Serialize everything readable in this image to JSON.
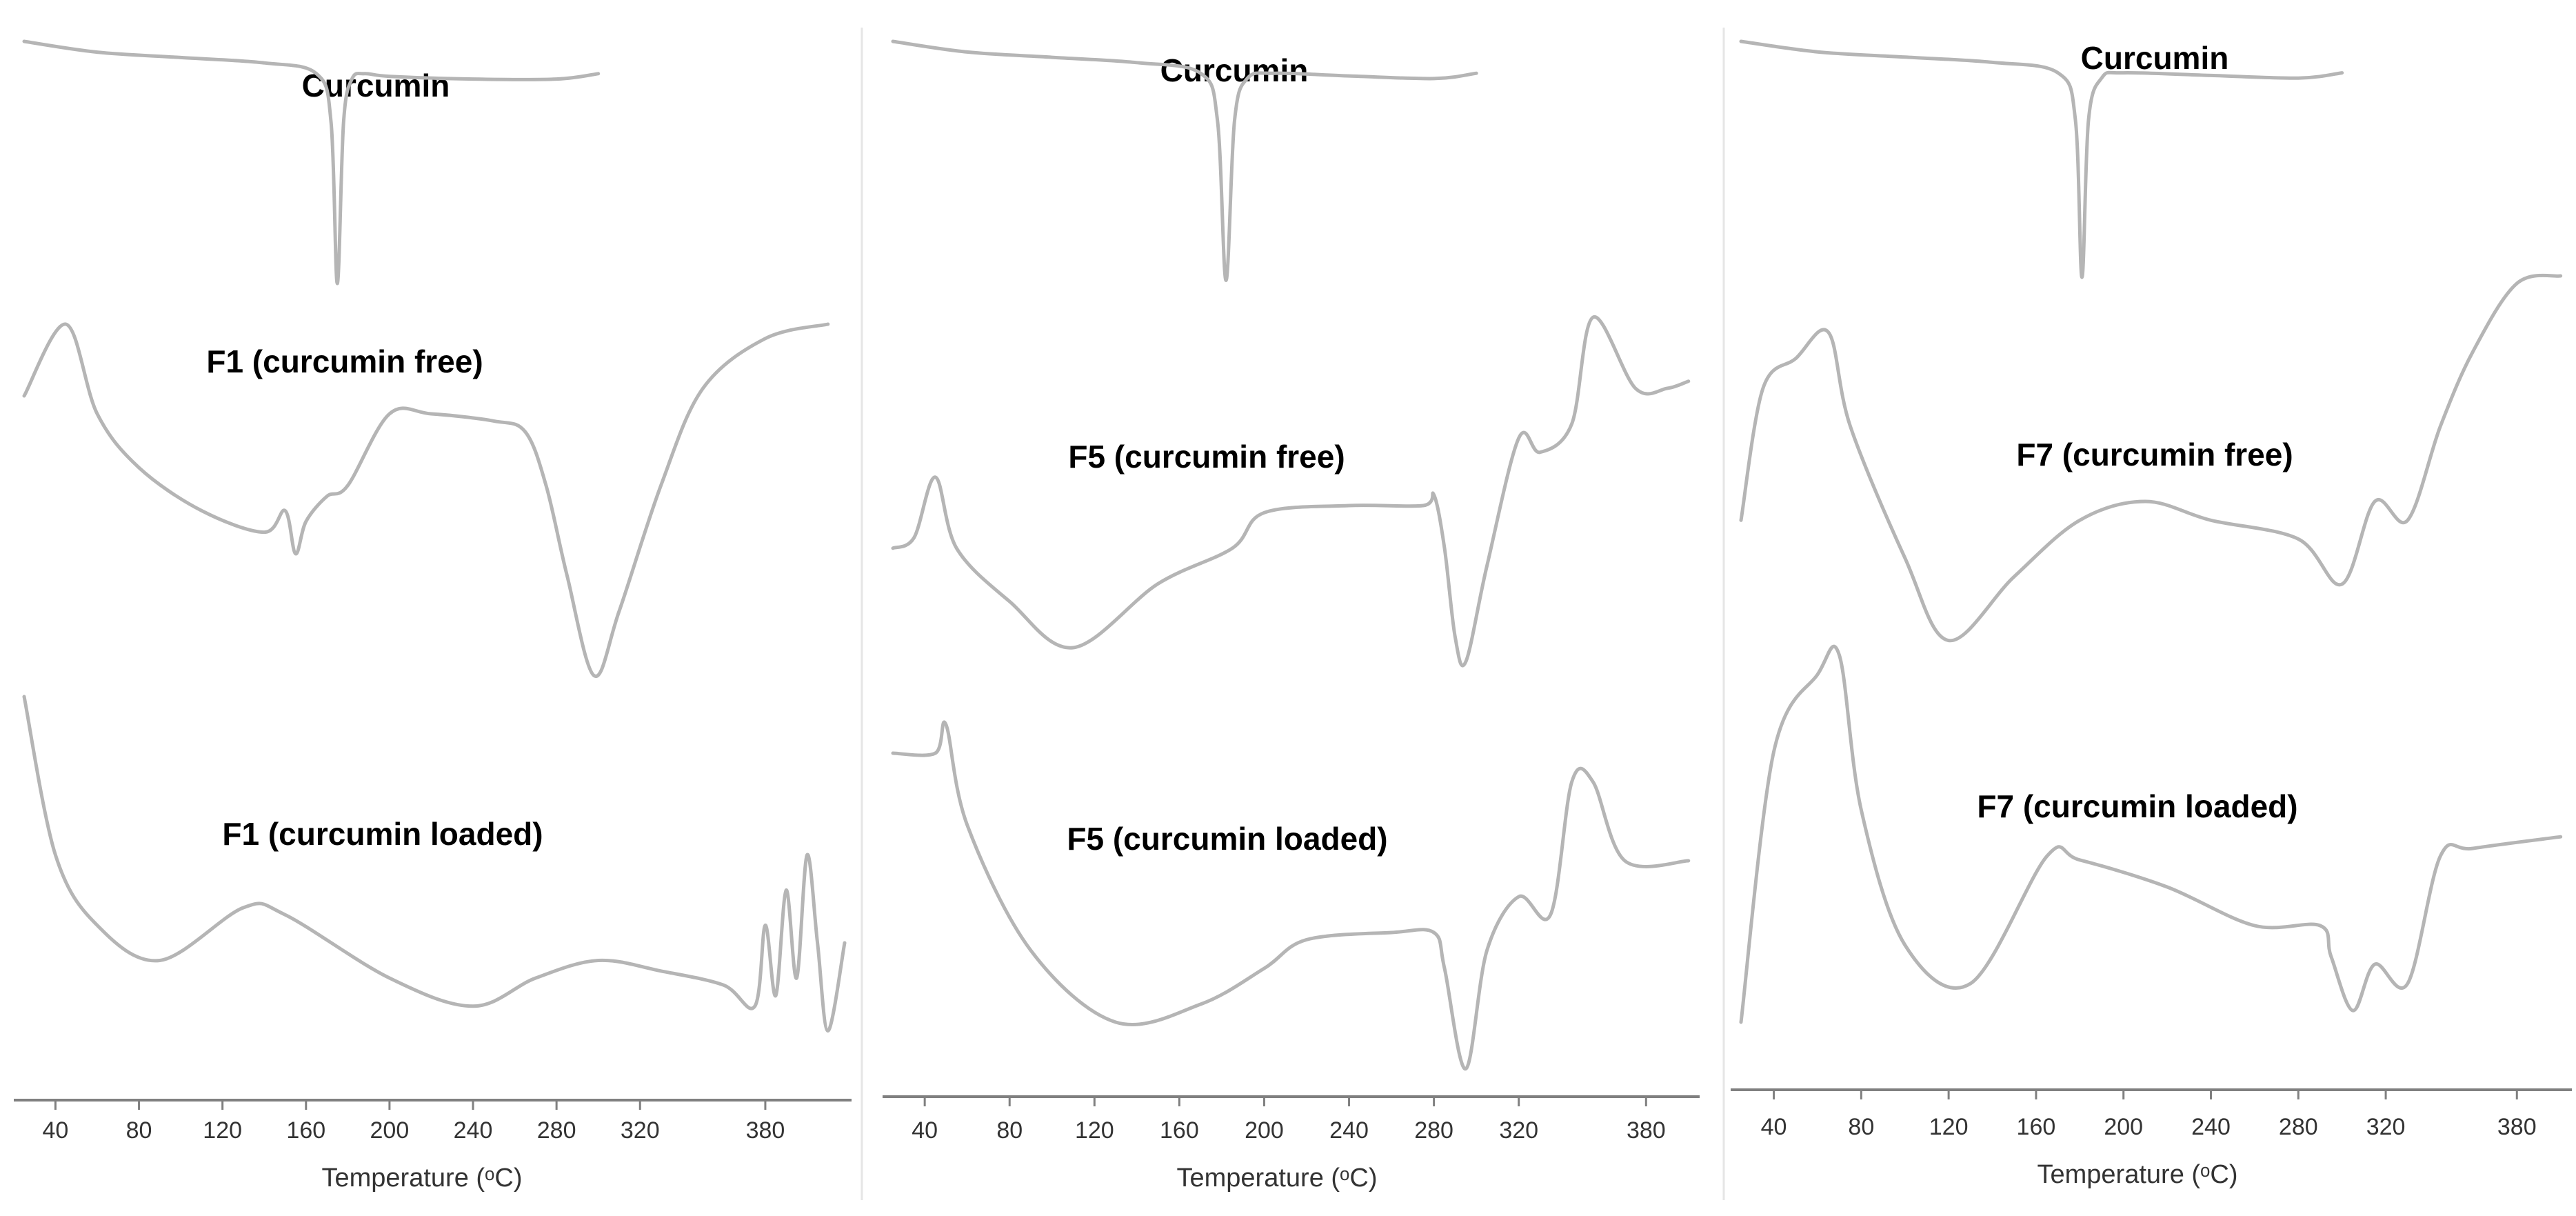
{
  "figure": {
    "colors": {
      "curve": "#b5b5b5",
      "axis": "#808080",
      "text": "#000000"
    }
  },
  "chart_data": [
    {
      "type": "line",
      "xlabel": "Temperature (ᵒC)",
      "x_ticks": [
        "40",
        "80",
        "120",
        "160",
        "200",
        "240",
        "280",
        "320",
        "380"
      ],
      "series": [
        {
          "name": "Curcumin",
          "x": [
            25,
            60,
            100,
            140,
            165,
            172,
            175,
            178,
            182,
            188,
            200,
            240,
            280,
            300
          ],
          "y": [
            1.0,
            0.96,
            0.94,
            0.92,
            0.88,
            0.7,
            0.1,
            0.7,
            0.86,
            0.88,
            0.87,
            0.86,
            0.86,
            0.88
          ]
        },
        {
          "name": "F1 (curcumin free)",
          "x": [
            25,
            45,
            60,
            80,
            110,
            140,
            150,
            155,
            160,
            170,
            180,
            200,
            220,
            250,
            265,
            275,
            285,
            298,
            310,
            330,
            350,
            380,
            410
          ],
          "y": [
            0.8,
            1.0,
            0.75,
            0.6,
            0.48,
            0.42,
            0.48,
            0.36,
            0.45,
            0.52,
            0.55,
            0.75,
            0.75,
            0.73,
            0.7,
            0.55,
            0.3,
            0.02,
            0.2,
            0.55,
            0.82,
            0.96,
            1.0
          ]
        },
        {
          "name": "F1 (curcumin loaded)",
          "x": [
            25,
            40,
            60,
            90,
            130,
            150,
            200,
            240,
            270,
            300,
            330,
            360,
            375,
            380,
            385,
            390,
            395,
            400,
            405,
            410,
            418
          ],
          "y": [
            1.0,
            0.55,
            0.35,
            0.25,
            0.4,
            0.38,
            0.2,
            0.12,
            0.2,
            0.25,
            0.22,
            0.18,
            0.12,
            0.35,
            0.15,
            0.45,
            0.2,
            0.55,
            0.3,
            0.05,
            0.3
          ]
        },
        {
          "name": "Curcumin",
          "x": [
            25,
            60,
            100,
            140,
            170,
            178,
            181,
            184,
            190,
            200,
            240,
            280,
            300
          ],
          "y": [
            1.0,
            0.96,
            0.94,
            0.92,
            0.88,
            0.7,
            0.1,
            0.7,
            0.86,
            0.88,
            0.87,
            0.86,
            0.88
          ]
        }
      ]
    },
    {
      "type": "line",
      "xlabel": "Temperature (ᵒC)",
      "x_ticks": [
        "40",
        "80",
        "120",
        "160",
        "200",
        "240",
        "280",
        "320",
        "380"
      ],
      "series": [
        {
          "name": "Curcumin",
          "x": [
            25,
            60,
            100,
            140,
            170,
            178,
            182,
            186,
            192,
            205,
            240,
            280,
            300
          ],
          "y": [
            1.0,
            0.96,
            0.94,
            0.92,
            0.88,
            0.7,
            0.1,
            0.7,
            0.86,
            0.88,
            0.87,
            0.86,
            0.88
          ]
        },
        {
          "name": "F5 (curcumin free)",
          "x": [
            25,
            35,
            45,
            55,
            80,
            110,
            150,
            185,
            200,
            240,
            275,
            280,
            285,
            290,
            295,
            305,
            320,
            330,
            345,
            355,
            375,
            390,
            400
          ],
          "y": [
            0.35,
            0.38,
            0.55,
            0.35,
            0.2,
            0.07,
            0.25,
            0.35,
            0.45,
            0.47,
            0.47,
            0.5,
            0.35,
            0.1,
            0.03,
            0.3,
            0.66,
            0.62,
            0.7,
            1.0,
            0.8,
            0.8,
            0.82
          ]
        },
        {
          "name": "F5 (curcumin loaded)",
          "x": [
            25,
            45,
            50,
            60,
            90,
            130,
            170,
            200,
            220,
            260,
            280,
            285,
            295,
            305,
            320,
            335,
            345,
            355,
            370,
            400
          ],
          "y": [
            0.9,
            0.9,
            0.98,
            0.7,
            0.35,
            0.15,
            0.2,
            0.3,
            0.38,
            0.4,
            0.4,
            0.3,
            0.02,
            0.35,
            0.5,
            0.45,
            0.82,
            0.82,
            0.6,
            0.6
          ]
        }
      ]
    },
    {
      "type": "line",
      "xlabel": "Temperature (ᵒC)",
      "x_ticks": [
        "40",
        "80",
        "120",
        "160",
        "200",
        "240",
        "280",
        "320",
        "380"
      ],
      "series": [
        {
          "name": "F7 (curcumin free)",
          "x": [
            25,
            35,
            50,
            65,
            75,
            100,
            120,
            150,
            180,
            210,
            240,
            280,
            300,
            315,
            330,
            345,
            360,
            380,
            400
          ],
          "y": [
            0.35,
            0.7,
            0.78,
            0.85,
            0.6,
            0.25,
            0.03,
            0.2,
            0.35,
            0.4,
            0.35,
            0.3,
            0.18,
            0.4,
            0.35,
            0.6,
            0.8,
            0.98,
            1.0
          ]
        },
        {
          "name": "F7 (curcumin loaded)",
          "x": [
            25,
            40,
            60,
            70,
            80,
            100,
            130,
            165,
            180,
            220,
            260,
            290,
            295,
            305,
            315,
            330,
            345,
            360,
            400
          ],
          "y": [
            0.05,
            0.75,
            0.95,
            1.0,
            0.6,
            0.25,
            0.15,
            0.48,
            0.47,
            0.4,
            0.3,
            0.3,
            0.22,
            0.08,
            0.2,
            0.15,
            0.48,
            0.5,
            0.53
          ]
        }
      ]
    }
  ]
}
